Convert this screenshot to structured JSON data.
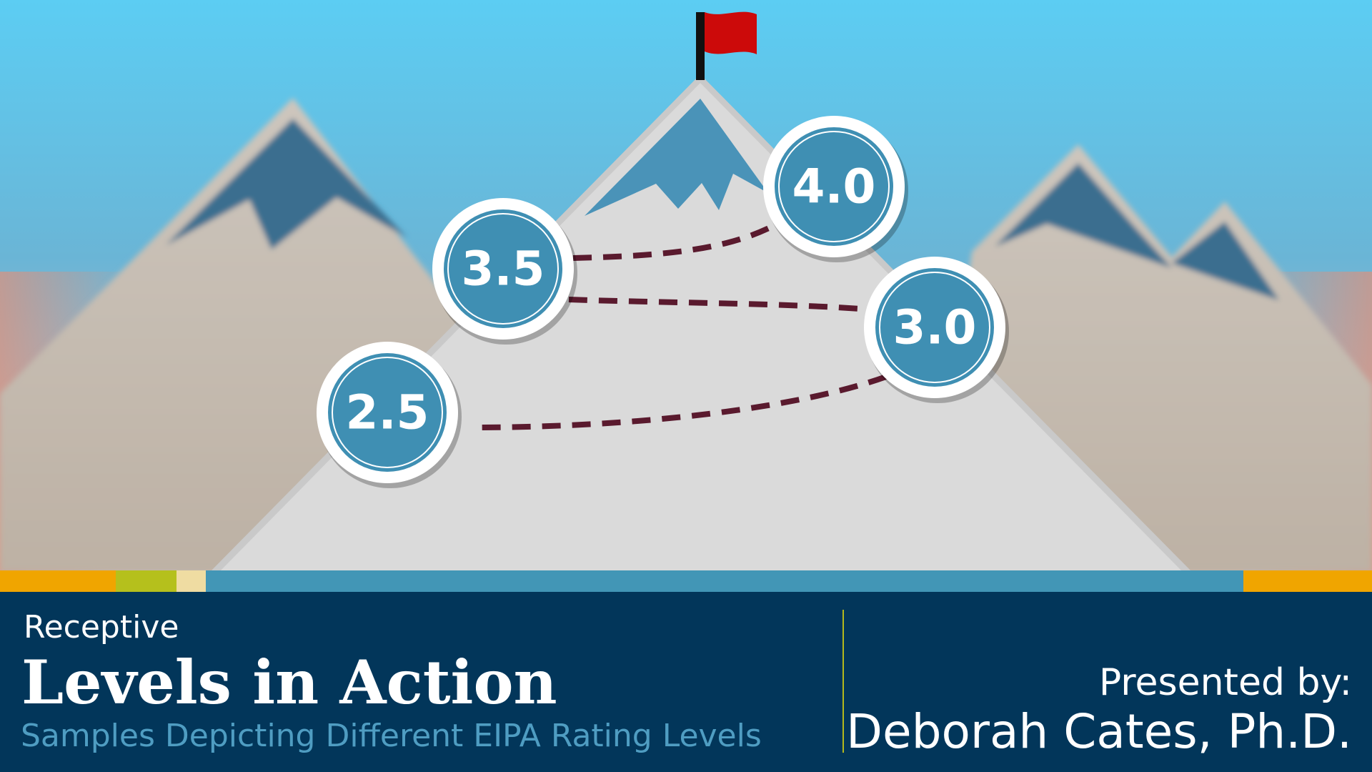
{
  "levels": [
    "4.0",
    "3.5",
    "3.0",
    "2.5"
  ],
  "header": {
    "eyebrow": "Receptive",
    "title": "Levels in Action",
    "subtitle": "Samples Depicting Different EIPA Rating Levels"
  },
  "presenter": {
    "label": "Presented by:",
    "name": "Deborah Cates, Ph.D."
  }
}
